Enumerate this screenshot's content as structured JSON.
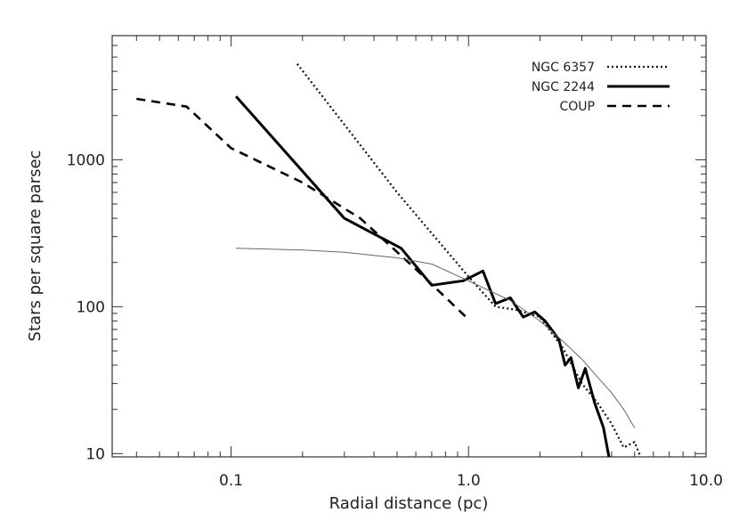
{
  "chart_data": {
    "type": "line",
    "title": "",
    "xlabel": "Radial distance (pc)",
    "ylabel": "Stars per square parsec",
    "x_scale": "log",
    "y_scale": "log",
    "xlim": [
      0.0316,
      10.0
    ],
    "ylim": [
      9.5,
      7000
    ],
    "x_ticks": [
      0.1,
      1.0,
      10.0
    ],
    "x_tick_labels": [
      "0.1",
      "1.0",
      "10.0"
    ],
    "y_ticks": [
      10,
      100,
      1000
    ],
    "y_tick_labels": [
      "10",
      "100",
      "1000"
    ],
    "grid": false,
    "legend_position": "top-right",
    "series": [
      {
        "name": "NGC 6357",
        "style": "dotted",
        "x": [
          0.19,
          0.5,
          1.0,
          1.3,
          1.6,
          2.0,
          2.5,
          3.0,
          3.5,
          4.0,
          4.5,
          5.0,
          5.3
        ],
        "y": [
          4500,
          600,
          160,
          100,
          95,
          85,
          52,
          30,
          22,
          16,
          11,
          12,
          9.5
        ]
      },
      {
        "name": "NGC 2244",
        "style": "solid-thick",
        "x": [
          0.105,
          0.3,
          0.52,
          0.7,
          0.95,
          1.15,
          1.3,
          1.5,
          1.7,
          1.9,
          2.1,
          2.4,
          2.55,
          2.7,
          2.9,
          3.1,
          3.4,
          3.7,
          3.9
        ],
        "y": [
          2700,
          400,
          250,
          140,
          150,
          175,
          105,
          115,
          85,
          92,
          80,
          60,
          40,
          45,
          28,
          38,
          22,
          15,
          8
        ]
      },
      {
        "name": "COUP",
        "style": "dashed",
        "x": [
          0.04,
          0.065,
          0.1,
          0.2,
          0.35,
          0.6,
          1.0
        ],
        "y": [
          2600,
          2300,
          1200,
          700,
          400,
          180,
          82
        ]
      },
      {
        "name": "",
        "style": "thin",
        "x": [
          0.105,
          0.2,
          0.3,
          0.5,
          0.7,
          1.0,
          1.5,
          2.0,
          2.5,
          3.0,
          3.5,
          4.0,
          4.5,
          5.0
        ],
        "y": [
          250,
          243,
          235,
          215,
          195,
          150,
          110,
          80,
          58,
          44,
          33,
          26,
          20,
          15
        ]
      }
    ]
  }
}
